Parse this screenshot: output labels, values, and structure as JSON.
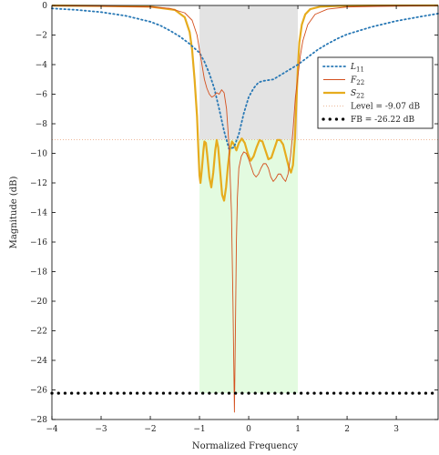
{
  "chart_data": {
    "type": "line",
    "xlabel": "Normalized Frequency",
    "ylabel": "Magnitude (dB)",
    "xlim": [
      -4,
      3.85
    ],
    "ylim": [
      -28,
      0
    ],
    "xticks": [
      -4,
      -3,
      -2,
      -1,
      0,
      1,
      2,
      3
    ],
    "xtick_labels": [
      "−4",
      "−3",
      "−2",
      "−1",
      "0",
      "1",
      "2",
      "3"
    ],
    "yticks": [
      0,
      -2,
      -4,
      -6,
      -8,
      -10,
      -12,
      -14,
      -16,
      -18,
      -20,
      -22,
      -24,
      -26,
      -28
    ],
    "ytick_labels": [
      "0",
      "−2",
      "−4",
      "−6",
      "−8",
      "−10",
      "−12",
      "−14",
      "−16",
      "−18",
      "−20",
      "−22",
      "−24",
      "−26",
      "−28"
    ],
    "grid": false,
    "legend_position": "top-right",
    "passband": {
      "x0": -1,
      "x1": 1
    },
    "level_db": -9.07,
    "fb_db": -26.22,
    "series": [
      {
        "name": "L11",
        "legend_label": "L",
        "legend_sub": "11",
        "color": "#2878b5",
        "style": "dotted",
        "x": [
          -4,
          -3.5,
          -3,
          -2.5,
          -2,
          -1.8,
          -1.6,
          -1.4,
          -1.2,
          -1.1,
          -1.0,
          -0.9,
          -0.8,
          -0.7,
          -0.6,
          -0.5,
          -0.4,
          -0.3,
          -0.2,
          -0.1,
          0,
          0.1,
          0.2,
          0.3,
          0.4,
          0.5,
          0.6,
          0.7,
          0.8,
          0.9,
          1.0,
          1.1,
          1.2,
          1.4,
          1.6,
          1.8,
          2.0,
          2.5,
          3.0,
          3.5,
          3.85
        ],
        "y": [
          -0.2,
          -0.3,
          -0.45,
          -0.7,
          -1.1,
          -1.35,
          -1.7,
          -2.1,
          -2.6,
          -2.9,
          -3.2,
          -3.8,
          -4.6,
          -5.6,
          -7.0,
          -8.5,
          -9.7,
          -9.6,
          -8.7,
          -7.3,
          -6.2,
          -5.6,
          -5.2,
          -5.1,
          -5.05,
          -5.0,
          -4.8,
          -4.6,
          -4.4,
          -4.2,
          -4.0,
          -3.75,
          -3.5,
          -3.0,
          -2.6,
          -2.25,
          -1.95,
          -1.45,
          -1.05,
          -0.75,
          -0.55
        ]
      },
      {
        "name": "F22",
        "legend_label": "F",
        "legend_sub": "22",
        "color": "#d4501e",
        "style": "solid",
        "x": [
          -4,
          -3,
          -2,
          -1.6,
          -1.3,
          -1.15,
          -1.05,
          -1.0,
          -0.95,
          -0.9,
          -0.85,
          -0.8,
          -0.75,
          -0.7,
          -0.65,
          -0.6,
          -0.55,
          -0.5,
          -0.45,
          -0.4,
          -0.35,
          -0.32,
          -0.29,
          -0.27,
          -0.25,
          -0.23,
          -0.2,
          -0.15,
          -0.1,
          -0.05,
          0,
          0.05,
          0.1,
          0.15,
          0.2,
          0.25,
          0.3,
          0.35,
          0.4,
          0.45,
          0.5,
          0.55,
          0.6,
          0.65,
          0.7,
          0.75,
          0.8,
          0.85,
          0.9,
          0.95,
          1.0,
          1.05,
          1.1,
          1.2,
          1.35,
          1.6,
          2,
          3,
          3.85
        ],
        "y": [
          -0.02,
          -0.05,
          -0.1,
          -0.2,
          -0.5,
          -1.0,
          -2.0,
          -3.0,
          -4.0,
          -5.0,
          -5.6,
          -6.0,
          -6.2,
          -6.1,
          -5.9,
          -6.0,
          -5.7,
          -5.9,
          -7.0,
          -9.5,
          -14,
          -20,
          -27.5,
          -22,
          -16,
          -13,
          -11,
          -10.2,
          -9.9,
          -10.0,
          -10.4,
          -10.9,
          -11.4,
          -11.6,
          -11.4,
          -11.0,
          -10.7,
          -10.7,
          -11.0,
          -11.6,
          -11.9,
          -11.7,
          -11.4,
          -11.4,
          -11.7,
          -11.9,
          -11.4,
          -10.2,
          -8.5,
          -6.2,
          -4.8,
          -3.4,
          -2.4,
          -1.3,
          -0.6,
          -0.25,
          -0.1,
          -0.04,
          -0.02
        ]
      },
      {
        "name": "S22",
        "legend_label": "S",
        "legend_sub": "22",
        "color": "#e6ac1e",
        "style": "solid-thick",
        "x": [
          -4,
          -3,
          -2,
          -1.5,
          -1.3,
          -1.2,
          -1.15,
          -1.1,
          -1.05,
          -1.02,
          -1.0,
          -0.98,
          -0.95,
          -0.92,
          -0.9,
          -0.87,
          -0.84,
          -0.8,
          -0.76,
          -0.72,
          -0.68,
          -0.65,
          -0.62,
          -0.58,
          -0.54,
          -0.5,
          -0.46,
          -0.42,
          -0.38,
          -0.34,
          -0.3,
          -0.25,
          -0.2,
          -0.14,
          -0.08,
          -0.02,
          0.04,
          0.1,
          0.16,
          0.22,
          0.28,
          0.34,
          0.4,
          0.46,
          0.52,
          0.58,
          0.64,
          0.7,
          0.76,
          0.82,
          0.86,
          0.9,
          0.94,
          0.97,
          1.0,
          1.03,
          1.08,
          1.15,
          1.25,
          1.45,
          1.8,
          2.5,
          3.85
        ],
        "y": [
          -0.01,
          -0.03,
          -0.08,
          -0.3,
          -0.8,
          -1.8,
          -3.0,
          -5.0,
          -7.5,
          -10.0,
          -11.5,
          -12.0,
          -11.0,
          -9.8,
          -9.2,
          -9.3,
          -10.2,
          -11.6,
          -12.3,
          -11.3,
          -9.8,
          -9.1,
          -9.6,
          -11.2,
          -12.8,
          -13.2,
          -12.3,
          -10.8,
          -9.7,
          -9.2,
          -9.4,
          -9.8,
          -9.3,
          -9.0,
          -9.3,
          -10.0,
          -10.5,
          -10.2,
          -9.6,
          -9.1,
          -9.2,
          -9.8,
          -10.4,
          -10.3,
          -9.7,
          -9.1,
          -9.1,
          -9.4,
          -10.2,
          -11.0,
          -11.3,
          -10.8,
          -9.0,
          -6.5,
          -4.2,
          -2.5,
          -1.3,
          -0.6,
          -0.25,
          -0.08,
          -0.03,
          -0.01,
          0.0
        ]
      },
      {
        "name": "Level = -9.07 dB",
        "legend_label": "Level = -9.07 dB",
        "color": "#e8a27a",
        "style": "thin-dotted",
        "x": [
          -4,
          3.85
        ],
        "y": [
          -9.07,
          -9.07
        ]
      },
      {
        "name": "FB = -26.22 dB",
        "legend_label": "FB = -26.22 dB",
        "color": "#000000",
        "style": "dots",
        "x": [
          -4,
          3.85
        ],
        "y": [
          -26.22,
          -26.22
        ]
      }
    ]
  }
}
